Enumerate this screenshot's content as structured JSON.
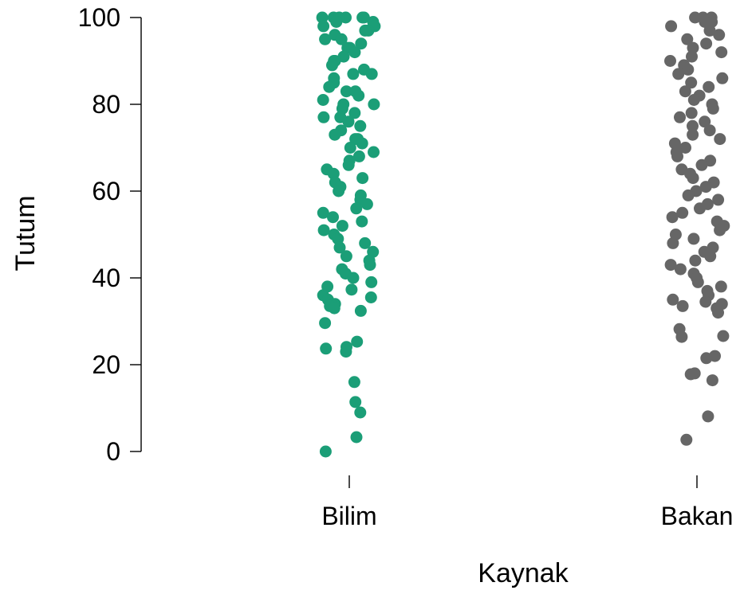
{
  "chart_data": {
    "type": "scatter",
    "xlabel": "Kaynak",
    "ylabel": "Tutum",
    "ylim": [
      0,
      100
    ],
    "yticks": [
      0,
      20,
      40,
      60,
      80,
      100
    ],
    "categories": [
      "Bilim",
      "Bakan"
    ],
    "grid": false,
    "series": [
      {
        "color": "#1b9e77",
        "values": [
          100,
          100,
          100,
          100,
          100,
          100,
          99,
          99,
          98,
          98,
          97,
          97,
          96,
          95,
          95,
          94,
          93,
          93,
          92,
          91,
          90,
          90,
          89,
          88,
          87,
          87,
          86,
          85,
          84,
          83,
          83,
          82,
          81,
          80,
          80,
          79,
          78,
          77,
          77,
          76,
          75,
          74,
          73,
          72,
          72,
          71,
          70,
          69,
          68,
          67,
          66,
          65,
          64,
          63,
          62,
          61,
          60,
          59,
          58,
          57,
          56,
          55,
          54,
          53,
          52,
          51,
          50,
          49,
          48,
          47,
          46,
          45,
          44,
          43,
          42,
          41,
          40,
          39,
          38,
          37.3,
          36,
          35.5,
          35,
          34,
          33.8,
          33.5,
          33,
          32.4,
          29.6,
          25.3,
          24.1,
          23.7,
          23,
          16,
          11.4,
          9,
          3.3,
          0
        ]
      },
      {
        "color": "#666666",
        "values": [
          100,
          100,
          100,
          99,
          99,
          98,
          97,
          96,
          95,
          94,
          93,
          92,
          91,
          90,
          89,
          88,
          87,
          86,
          85,
          84,
          83,
          82,
          81,
          80,
          79,
          78,
          77,
          76,
          75,
          74,
          73,
          72,
          71,
          70,
          69,
          68,
          67,
          66,
          65,
          64,
          63,
          62,
          61,
          60,
          59,
          58,
          57,
          56,
          55,
          54,
          53,
          52,
          51,
          50,
          49,
          48,
          47,
          46,
          45,
          44,
          43,
          42,
          41,
          40,
          39,
          38,
          37,
          36,
          35,
          34.5,
          34,
          33.5,
          33,
          32,
          28.2,
          26.6,
          26.4,
          22,
          21.5,
          18,
          17.8,
          16.4,
          8.1,
          2.7
        ]
      }
    ]
  }
}
